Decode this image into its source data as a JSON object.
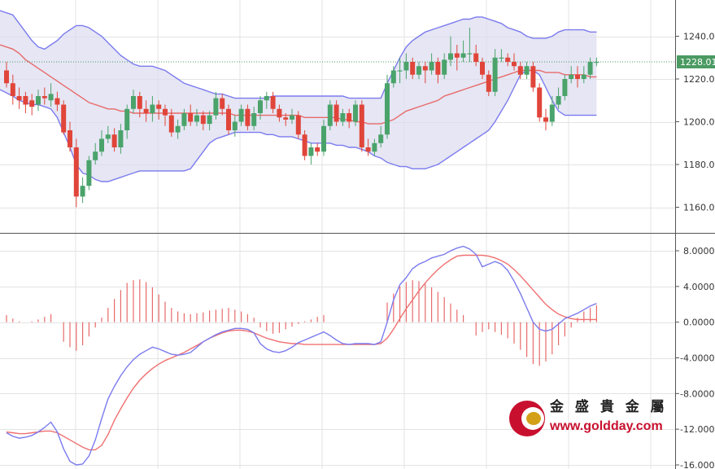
{
  "brand": {
    "name_cn": "金 盛 貴 金 屬",
    "url": "www.goldday.com",
    "colors": {
      "logo_red": "#c8102e",
      "logo_gold": "#d4a017"
    }
  },
  "colors": {
    "up": "#4aa36b",
    "down": "#e0453a",
    "band_line": "#7b7bef",
    "band_fill": "#dcdcef",
    "mid_line": "#e86a6a",
    "hist": "#e86a6a",
    "macd_line": "#7b7bef",
    "signal_line": "#f07070",
    "price_tag_bg": "#4a9a62",
    "grid": "#e3e3e3"
  },
  "price_axis": {
    "ticks": [
      "1240.00",
      "1220.00",
      "1200.00",
      "1180.00",
      "1160.00"
    ],
    "current_price_label": "1228.01"
  },
  "macd_axis": {
    "ticks": [
      "8.0000",
      "4.0000",
      "0.0000",
      "-4.0000",
      "-8.0000",
      "-12.0000",
      "-16.0000"
    ]
  },
  "chart_data": [
    {
      "type": "candlestick",
      "indicator": "Bollinger Bands",
      "ylim": [
        1150,
        1255
      ],
      "current_price": 1228.01,
      "candles": [
        [
          1224,
          1218,
          1228,
          1216
        ],
        [
          1218,
          1212,
          1222,
          1208
        ],
        [
          1212,
          1210,
          1216,
          1206
        ],
        [
          1212,
          1208,
          1214,
          1204
        ],
        [
          1210,
          1207,
          1213,
          1203
        ],
        [
          1208,
          1212,
          1215,
          1205
        ],
        [
          1212,
          1211,
          1216,
          1208
        ],
        [
          1210,
          1213,
          1218,
          1207
        ],
        [
          1211,
          1208,
          1214,
          1205
        ],
        [
          1208,
          1195,
          1210,
          1194
        ],
        [
          1196,
          1188,
          1200,
          1186
        ],
        [
          1188,
          1165,
          1192,
          1160
        ],
        [
          1165,
          1170,
          1174,
          1162
        ],
        [
          1170,
          1182,
          1184,
          1168
        ],
        [
          1182,
          1186,
          1190,
          1180
        ],
        [
          1186,
          1192,
          1196,
          1184
        ],
        [
          1192,
          1194,
          1198,
          1190
        ],
        [
          1194,
          1188,
          1197,
          1186
        ],
        [
          1188,
          1196,
          1199,
          1185
        ],
        [
          1196,
          1206,
          1208,
          1192
        ],
        [
          1206,
          1212,
          1215,
          1204
        ],
        [
          1212,
          1206,
          1214,
          1202
        ],
        [
          1206,
          1204,
          1210,
          1200
        ],
        [
          1204,
          1208,
          1212,
          1200
        ],
        [
          1208,
          1206,
          1210,
          1201
        ],
        [
          1206,
          1203,
          1208,
          1198
        ],
        [
          1203,
          1195,
          1206,
          1193
        ],
        [
          1195,
          1198,
          1201,
          1192
        ],
        [
          1198,
          1204,
          1206,
          1196
        ],
        [
          1204,
          1200,
          1208,
          1198
        ],
        [
          1200,
          1203,
          1206,
          1198
        ],
        [
          1203,
          1199,
          1205,
          1196
        ],
        [
          1199,
          1203,
          1205,
          1196
        ],
        [
          1203,
          1211,
          1214,
          1201
        ],
        [
          1211,
          1206,
          1213,
          1203
        ],
        [
          1206,
          1196,
          1208,
          1194
        ],
        [
          1196,
          1200,
          1203,
          1193
        ],
        [
          1200,
          1206,
          1208,
          1198
        ],
        [
          1206,
          1198,
          1208,
          1196
        ],
        [
          1198,
          1204,
          1207,
          1196
        ],
        [
          1204,
          1210,
          1212,
          1201
        ],
        [
          1210,
          1212,
          1214,
          1206
        ],
        [
          1212,
          1206,
          1214,
          1204
        ],
        [
          1206,
          1202,
          1208,
          1200
        ],
        [
          1202,
          1201,
          1204,
          1198
        ],
        [
          1201,
          1203,
          1206,
          1199
        ],
        [
          1203,
          1194,
          1205,
          1192
        ],
        [
          1194,
          1184,
          1196,
          1182
        ],
        [
          1184,
          1188,
          1190,
          1180
        ],
        [
          1188,
          1186,
          1190,
          1184
        ],
        [
          1186,
          1198,
          1201,
          1184
        ],
        [
          1198,
          1208,
          1210,
          1196
        ],
        [
          1208,
          1200,
          1210,
          1198
        ],
        [
          1200,
          1204,
          1206,
          1198
        ],
        [
          1204,
          1200,
          1206,
          1197
        ],
        [
          1200,
          1208,
          1210,
          1198
        ],
        [
          1208,
          1188,
          1210,
          1186
        ],
        [
          1188,
          1186,
          1192,
          1184
        ],
        [
          1186,
          1190,
          1192,
          1184
        ],
        [
          1190,
          1194,
          1198,
          1188
        ],
        [
          1194,
          1218,
          1222,
          1192
        ],
        [
          1218,
          1224,
          1226,
          1216
        ],
        [
          1224,
          1224,
          1230,
          1218
        ],
        [
          1224,
          1228,
          1232,
          1220
        ],
        [
          1228,
          1222,
          1230,
          1220
        ],
        [
          1222,
          1226,
          1228,
          1220
        ],
        [
          1226,
          1224,
          1228,
          1218
        ],
        [
          1224,
          1228,
          1232,
          1222
        ],
        [
          1228,
          1222,
          1230,
          1218
        ],
        [
          1222,
          1229,
          1232,
          1220
        ],
        [
          1229,
          1232,
          1240,
          1226
        ],
        [
          1232,
          1230,
          1236,
          1224
        ],
        [
          1230,
          1232,
          1238,
          1228
        ],
        [
          1232,
          1232,
          1244,
          1228
        ],
        [
          1232,
          1228,
          1236,
          1226
        ],
        [
          1228,
          1222,
          1230,
          1220
        ],
        [
          1222,
          1214,
          1224,
          1212
        ],
        [
          1214,
          1230,
          1234,
          1212
        ],
        [
          1230,
          1230,
          1234,
          1228
        ],
        [
          1230,
          1228,
          1232,
          1226
        ],
        [
          1228,
          1226,
          1232,
          1224
        ],
        [
          1226,
          1222,
          1228,
          1220
        ],
        [
          1222,
          1226,
          1228,
          1220
        ],
        [
          1226,
          1216,
          1228,
          1214
        ],
        [
          1216,
          1202,
          1218,
          1200
        ],
        [
          1202,
          1200,
          1206,
          1196
        ],
        [
          1200,
          1208,
          1212,
          1198
        ],
        [
          1208,
          1212,
          1216,
          1206
        ],
        [
          1212,
          1220,
          1222,
          1210
        ],
        [
          1220,
          1222,
          1226,
          1218
        ],
        [
          1222,
          1220,
          1226,
          1216
        ],
        [
          1220,
          1222,
          1226,
          1218
        ],
        [
          1222,
          1228,
          1230,
          1220
        ],
        [
          1228,
          1228,
          1230,
          1226
        ]
      ],
      "bollinger_upper": [
        1252,
        1250,
        1246,
        1242,
        1238,
        1235,
        1234,
        1236,
        1238,
        1241,
        1243,
        1245,
        1245,
        1244,
        1242,
        1240,
        1237,
        1234,
        1231,
        1229,
        1227,
        1226,
        1226,
        1226,
        1225,
        1224,
        1222,
        1220,
        1218,
        1217,
        1216,
        1215,
        1214,
        1213,
        1213,
        1212,
        1211,
        1211,
        1211,
        1211,
        1211,
        1211,
        1212,
        1212,
        1212,
        1212,
        1212,
        1212,
        1212,
        1212,
        1212,
        1212,
        1212,
        1212,
        1211,
        1211,
        1211,
        1211,
        1211,
        1211,
        1218,
        1224,
        1230,
        1235,
        1238,
        1240,
        1242,
        1243,
        1244,
        1245,
        1246,
        1247,
        1248,
        1248,
        1249,
        1249,
        1248,
        1247,
        1246,
        1244,
        1243,
        1242,
        1240,
        1239,
        1239,
        1239,
        1240,
        1242,
        1243,
        1243,
        1243,
        1243,
        1242,
        1242
      ],
      "bollinger_middle": [
        1236,
        1234,
        1232,
        1229,
        1227,
        1225,
        1223,
        1221,
        1219,
        1217,
        1215,
        1213,
        1211,
        1209,
        1208,
        1207,
        1206,
        1206,
        1205,
        1205,
        1204,
        1204,
        1204,
        1204,
        1204,
        1204,
        1204,
        1204,
        1204,
        1204,
        1204,
        1204,
        1204,
        1204,
        1204,
        1204,
        1203,
        1203,
        1203,
        1203,
        1203,
        1203,
        1203,
        1203,
        1203,
        1203,
        1203,
        1202,
        1202,
        1202,
        1202,
        1202,
        1202,
        1201,
        1201,
        1200,
        1200,
        1199,
        1199,
        1199,
        1200,
        1201,
        1203,
        1205,
        1206,
        1207,
        1208,
        1209,
        1210,
        1212,
        1213,
        1214,
        1215,
        1216,
        1217,
        1218,
        1219,
        1220,
        1221,
        1222,
        1223,
        1224,
        1224,
        1224,
        1224,
        1223,
        1223,
        1223,
        1222,
        1222,
        1222,
        1222,
        1221,
        1221
      ],
      "bollinger_lower": [
        1215,
        1212,
        1210,
        1209,
        1208,
        1208,
        1207,
        1206,
        1202,
        1195,
        1188,
        1180,
        1176,
        1175,
        1173,
        1172,
        1172,
        1173,
        1174,
        1175,
        1176,
        1177,
        1177,
        1177,
        1177,
        1177,
        1177,
        1177,
        1177,
        1178,
        1182,
        1186,
        1190,
        1192,
        1193,
        1194,
        1195,
        1195,
        1195,
        1195,
        1195,
        1194,
        1194,
        1193,
        1193,
        1193,
        1192,
        1191,
        1190,
        1190,
        1190,
        1190,
        1189,
        1189,
        1188,
        1188,
        1187,
        1186,
        1184,
        1183,
        1181,
        1180,
        1179,
        1179,
        1178,
        1178,
        1178,
        1179,
        1180,
        1182,
        1184,
        1186,
        1188,
        1190,
        1192,
        1194,
        1196,
        1200,
        1205,
        1210,
        1216,
        1222,
        1224,
        1224,
        1222,
        1216,
        1210,
        1205,
        1203,
        1203,
        1203,
        1203,
        1203,
        1203
      ]
    },
    {
      "type": "macd",
      "ylim": [
        -16,
        9.5
      ],
      "histogram": [
        0.8,
        0.4,
        0.1,
        0,
        0.1,
        0.3,
        0.6,
        0.9,
        0,
        -2.2,
        -2.8,
        -3.2,
        -2.6,
        -1.6,
        -0.6,
        0.5,
        1.6,
        2.6,
        3.6,
        4.4,
        4.7,
        4.8,
        4.5,
        3.9,
        3.1,
        2.3,
        1.6,
        1.2,
        1,
        0.9,
        1,
        1.1,
        1.3,
        1.4,
        1.5,
        1.6,
        1.4,
        1.2,
        0.9,
        0.5,
        -0.6,
        -1,
        -1.3,
        -1.2,
        -0.8,
        -0.5,
        -0.2,
        0.1,
        0.3,
        0.6,
        0.8,
        0,
        0,
        0,
        0,
        0,
        0,
        0,
        0,
        0,
        2.2,
        3.2,
        4,
        4.5,
        4.7,
        4.6,
        4.3,
        3.9,
        3.4,
        2.8,
        2.1,
        1.4,
        0.8,
        0,
        -1.5,
        -1.1,
        -0.8,
        -1.1,
        -1.4,
        -1.8,
        -2.4,
        -3.1,
        -3.9,
        -4.7,
        -4.9,
        -4.4,
        -3.6,
        -2.6,
        -1.6,
        -0.6,
        0.5,
        1.2,
        1.6,
        1.9
      ],
      "macd_line": [
        -12.4,
        -12.8,
        -13,
        -12.9,
        -12.7,
        -12.3,
        -11.8,
        -11.2,
        -12.3,
        -14.2,
        -15.6,
        -16,
        -15.9,
        -15,
        -13.2,
        -10.8,
        -8.6,
        -7.2,
        -6,
        -5,
        -4.2,
        -3.6,
        -3.2,
        -2.8,
        -3,
        -3.3,
        -3.6,
        -3.7,
        -3.6,
        -3.4,
        -2.8,
        -2.2,
        -1.8,
        -1.4,
        -1.1,
        -0.9,
        -0.7,
        -0.7,
        -0.8,
        -1.2,
        -2.4,
        -3,
        -3.3,
        -3.4,
        -3.2,
        -2.8,
        -2.3,
        -2,
        -1.7,
        -1.4,
        -1.1,
        -1.5,
        -2,
        -2.4,
        -2.5,
        -2.4,
        -2.4,
        -2.4,
        -2.5,
        -2.2,
        0,
        2.5,
        4.2,
        5,
        6,
        6.5,
        6.8,
        7.2,
        7.4,
        7.6,
        8,
        8.3,
        8.5,
        8.2,
        7.6,
        6.2,
        6.5,
        6.8,
        6.5,
        5.8,
        4.6,
        3.2,
        1.6,
        0,
        -0.8,
        -1,
        -0.8,
        -0.2,
        0.4,
        0.7,
        1,
        1.4,
        1.8,
        2.1
      ],
      "signal_line": [
        -12.3,
        -12.4,
        -12.5,
        -12.5,
        -12.4,
        -12.3,
        -12.2,
        -12.2,
        -12.4,
        -12.8,
        -13.2,
        -13.6,
        -14,
        -14.3,
        -14.3,
        -13.8,
        -12.6,
        -11,
        -9.7,
        -8.5,
        -7.4,
        -6.5,
        -5.8,
        -5.2,
        -4.7,
        -4.3,
        -4,
        -3.7,
        -3.4,
        -3,
        -2.6,
        -2.2,
        -1.8,
        -1.5,
        -1.2,
        -1,
        -0.9,
        -0.9,
        -1,
        -1.2,
        -1.5,
        -1.8,
        -2,
        -2.2,
        -2.3,
        -2.4,
        -2.4,
        -2.5,
        -2.5,
        -2.5,
        -2.5,
        -2.5,
        -2.5,
        -2.5,
        -2.5,
        -2.5,
        -2.5,
        -2.5,
        -2.5,
        -2.4,
        -1.8,
        -0.8,
        0.4,
        1.5,
        2.5,
        3.5,
        4.4,
        5.2,
        5.9,
        6.5,
        7,
        7.4,
        7.5,
        7.5,
        7.5,
        7.5,
        7.4,
        7.2,
        6.9,
        6.5,
        5.9,
        5.2,
        4.4,
        3.6,
        2.8,
        2,
        1.4,
        0.9,
        0.6,
        0.4,
        0.3,
        0.3,
        0.3,
        0.3
      ]
    }
  ]
}
